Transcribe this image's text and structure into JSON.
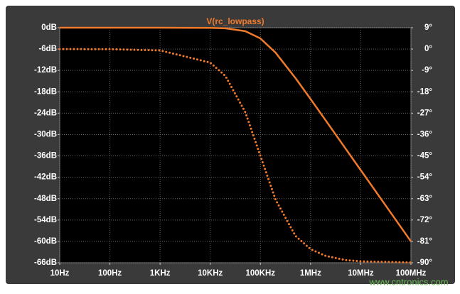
{
  "chart_data": {
    "type": "line",
    "title": "V(rc_lowpass)",
    "watermark": "www.cntronics.com",
    "xscale": "log",
    "grid": true,
    "x": [
      10,
      100,
      1000,
      10000,
      20000,
      50000,
      100000,
      200000,
      500000,
      1000000,
      2000000,
      5000000,
      10000000,
      100000000
    ],
    "xlim": [
      10,
      100000000
    ],
    "xticks": [
      {
        "value": 10,
        "label": "10Hz"
      },
      {
        "value": 100,
        "label": "100Hz"
      },
      {
        "value": 1000,
        "label": "1KHz"
      },
      {
        "value": 10000,
        "label": "10KHz"
      },
      {
        "value": 100000,
        "label": "100KHz"
      },
      {
        "value": 1000000,
        "label": "1MHz"
      },
      {
        "value": 10000000,
        "label": "10MHz"
      },
      {
        "value": 100000000,
        "label": "100MHz"
      }
    ],
    "ylim": [
      -66,
      0
    ],
    "yticks": [
      {
        "value": 0,
        "label": "0dB"
      },
      {
        "value": -6,
        "label": "-6dB"
      },
      {
        "value": -12,
        "label": "-12dB"
      },
      {
        "value": -18,
        "label": "-18dB"
      },
      {
        "value": -24,
        "label": "-24dB"
      },
      {
        "value": -30,
        "label": "-30dB"
      },
      {
        "value": -36,
        "label": "-36dB"
      },
      {
        "value": -42,
        "label": "-42dB"
      },
      {
        "value": -48,
        "label": "-48dB"
      },
      {
        "value": -54,
        "label": "-54dB"
      },
      {
        "value": -60,
        "label": "-60dB"
      },
      {
        "value": -66,
        "label": "-66dB"
      }
    ],
    "y2lim": [
      -90,
      9
    ],
    "y2ticks": [
      {
        "value": 9,
        "label": "9°"
      },
      {
        "value": 0,
        "label": "0°"
      },
      {
        "value": -9,
        "label": "-9°"
      },
      {
        "value": -18,
        "label": "-18°"
      },
      {
        "value": -27,
        "label": "-27°"
      },
      {
        "value": -36,
        "label": "-36°"
      },
      {
        "value": -45,
        "label": "-45°"
      },
      {
        "value": -54,
        "label": "-54°"
      },
      {
        "value": -63,
        "label": "-63°"
      },
      {
        "value": -72,
        "label": "-72°"
      },
      {
        "value": -81,
        "label": "-81°"
      },
      {
        "value": -90,
        "label": "-90°"
      }
    ],
    "series": [
      {
        "color": "#f07a2c",
        "style": "solid",
        "values": [
          0,
          0,
          0,
          -0.04,
          -0.17,
          -0.97,
          -3.01,
          -6.99,
          -14.15,
          -20.04,
          -26.03,
          -33.98,
          -40.0,
          -60.0
        ]
      },
      {
        "color": "#f07a2c",
        "style": "dotted",
        "axis": "y2",
        "values": [
          0,
          -0.06,
          -0.57,
          -5.7,
          -11.3,
          -26.6,
          -45,
          -63.4,
          -78.7,
          -84.3,
          -87.1,
          -88.9,
          -89.4,
          -89.9
        ]
      }
    ]
  }
}
